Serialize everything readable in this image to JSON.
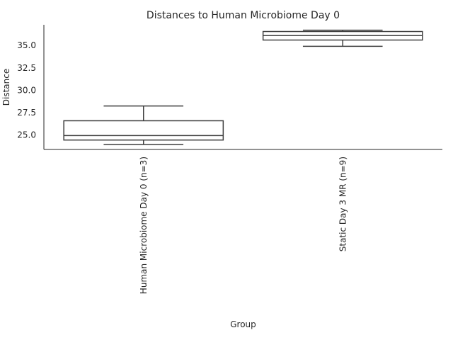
{
  "chart_data": {
    "type": "box",
    "title": "Distances to Human Microbiome Day 0",
    "xlabel": "Group",
    "ylabel": "Distance",
    "ylim": [
      23.4,
      37.3
    ],
    "yticks": [
      25.0,
      27.5,
      30.0,
      32.5,
      35.0
    ],
    "ytick_labels": [
      "25.0",
      "27.5",
      "30.0",
      "32.5",
      "35.0"
    ],
    "categories": [
      "Human Microbiome Day 0 (n=3)",
      "Static Day 3 MR (n=9)"
    ],
    "boxes": [
      {
        "name": "Human Microbiome Day 0 (n=3)",
        "whisker_low": 23.95,
        "q1": 24.45,
        "median": 24.95,
        "q3": 26.6,
        "whisker_high": 28.25
      },
      {
        "name": "Static Day 3 MR (n=9)",
        "whisker_low": 34.9,
        "q1": 35.6,
        "median": 36.1,
        "q3": 36.55,
        "whisker_high": 36.7
      }
    ],
    "grid": false,
    "legend": "none"
  }
}
